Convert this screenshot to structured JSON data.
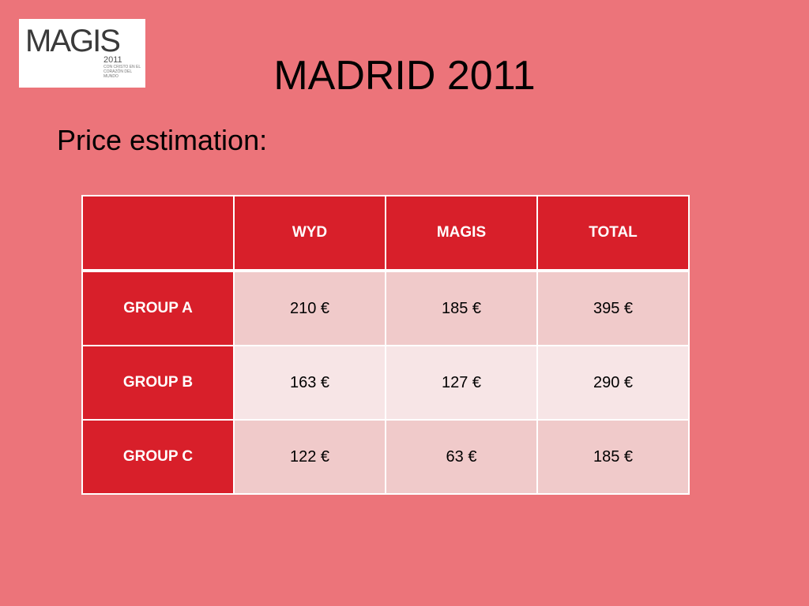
{
  "logo": {
    "word": "MAGIS",
    "year": "2011",
    "tagline": "CON CRISTO EN EL CORAZÓN DEL MUNDO"
  },
  "title": "MADRID 2011",
  "subtitle": "Price estimation:",
  "table": {
    "corner": "",
    "headers": [
      "WYD",
      "MAGIS",
      "TOTAL"
    ],
    "rows": [
      {
        "label": "GROUP A",
        "values": [
          "210 €",
          "185 €",
          "395 €"
        ]
      },
      {
        "label": "GROUP B",
        "values": [
          "163 €",
          "127 €",
          "290 €"
        ]
      },
      {
        "label": "GROUP C",
        "values": [
          "122 €",
          "63 €",
          "185 €"
        ]
      }
    ]
  },
  "colors": {
    "background": "#ec747a",
    "header_red": "#d81f2a",
    "row_light": "#f7e5e6",
    "row_medium": "#f0caca"
  }
}
